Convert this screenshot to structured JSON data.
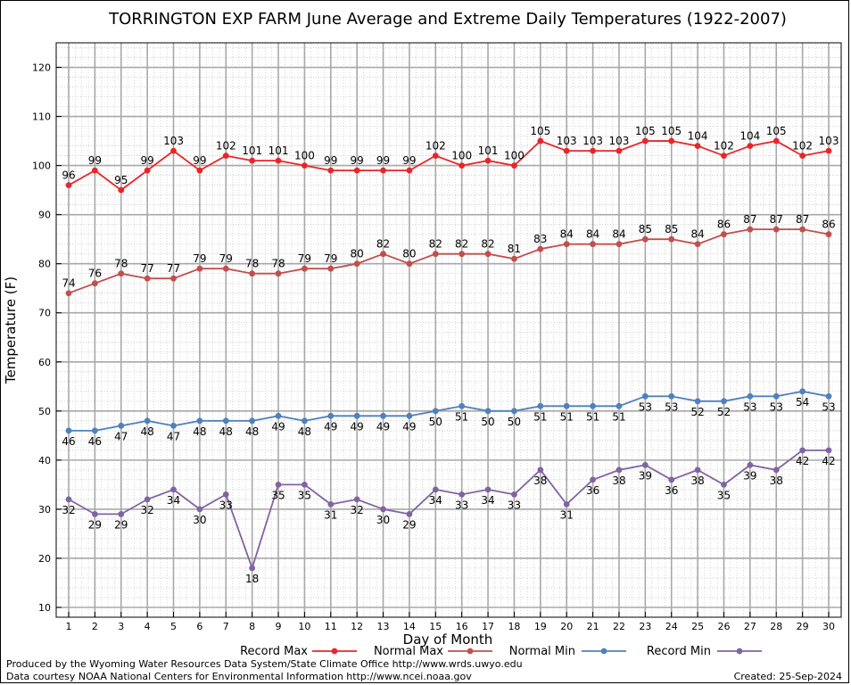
{
  "chart_data": {
    "type": "line",
    "title": "TORRINGTON EXP FARM June Average and Extreme Daily Temperatures (1922-2007)",
    "xlabel": "Day of Month",
    "ylabel": "Temperature (F)",
    "ylim": [
      8,
      125
    ],
    "yticks": [
      10,
      20,
      30,
      40,
      50,
      60,
      70,
      80,
      90,
      100,
      110,
      120
    ],
    "categories": [
      "1",
      "2",
      "3",
      "4",
      "5",
      "6",
      "7",
      "8",
      "9",
      "10",
      "11",
      "12",
      "13",
      "14",
      "15",
      "16",
      "17",
      "18",
      "19",
      "20",
      "21",
      "22",
      "23",
      "24",
      "25",
      "26",
      "27",
      "28",
      "29",
      "30"
    ],
    "grid": true,
    "legend_position": "bottom",
    "series": [
      {
        "name": "Record Max",
        "color": "#e8262a",
        "label_pos": "above",
        "values": [
          96,
          99,
          95,
          99,
          103,
          99,
          102,
          101,
          101,
          100,
          99,
          99,
          99,
          99,
          102,
          100,
          101,
          100,
          105,
          103,
          103,
          103,
          105,
          105,
          104,
          102,
          104,
          105,
          102,
          103
        ]
      },
      {
        "name": "Normal Max",
        "color": "#c0504d",
        "label_pos": "above",
        "values": [
          74,
          76,
          78,
          77,
          77,
          79,
          79,
          78,
          78,
          79,
          79,
          80,
          82,
          80,
          82,
          82,
          82,
          81,
          83,
          84,
          84,
          84,
          85,
          85,
          84,
          86,
          87,
          87,
          87,
          86
        ]
      },
      {
        "name": "Normal Min",
        "color": "#4f81bd",
        "label_pos": "below",
        "values": [
          46,
          46,
          47,
          48,
          47,
          48,
          48,
          48,
          49,
          48,
          49,
          49,
          49,
          49,
          50,
          51,
          50,
          50,
          51,
          51,
          51,
          51,
          53,
          53,
          52,
          52,
          53,
          53,
          54,
          53
        ]
      },
      {
        "name": "Record Min",
        "color": "#8064a2",
        "label_pos": "below",
        "values": [
          32,
          29,
          29,
          32,
          34,
          30,
          33,
          18,
          35,
          35,
          31,
          32,
          30,
          29,
          34,
          33,
          34,
          33,
          38,
          31,
          36,
          38,
          39,
          36,
          38,
          35,
          39,
          38,
          42,
          42
        ]
      }
    ]
  },
  "footer": {
    "credit_line1": "Produced by the Wyoming Water Resources Data System/State Climate Office http://www.wrds.uwyo.edu",
    "credit_line2": "Data courtesy NOAA National Centers for Environmental Information http://www.ncei.noaa.gov",
    "created": "Created: 25-Sep-2024"
  }
}
